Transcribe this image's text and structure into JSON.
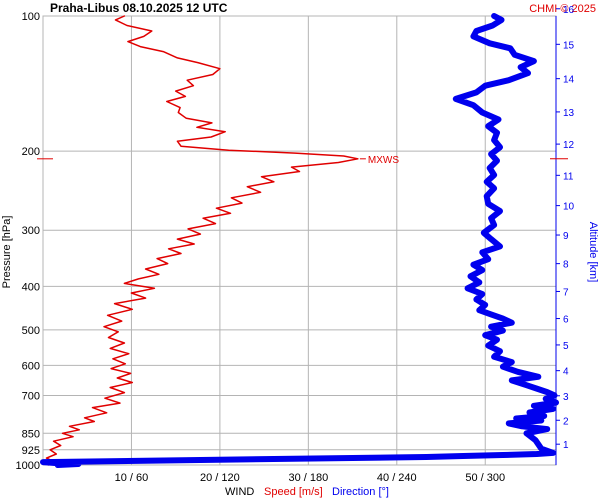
{
  "header": {
    "station": "Praha-Libus",
    "datetime": "08.10.2025 12 UTC",
    "credit": "CHMI © 2025"
  },
  "colors": {
    "speed": "#e00000",
    "direction": "#0000ee",
    "grid": "#b4b4b4",
    "text": "#000000",
    "credit": "#e00000"
  },
  "chart_data": {
    "type": "line",
    "title": "Praha-Libus    08.10.2025 12 UTC",
    "ylabel_left": "Pressure [hPa]",
    "ylabel_right": "Altitude [km]",
    "xlabel": {
      "prefix": "WIND",
      "speed": "Speed [m/s]",
      "direction": "Direction [°]"
    },
    "pressure_ticks": [
      100,
      200,
      300,
      400,
      500,
      600,
      700,
      850,
      925,
      1000
    ],
    "altitude_ticks": [
      1,
      2,
      3,
      4,
      5,
      6,
      7,
      8,
      9,
      10,
      11,
      12,
      13,
      14,
      15,
      16
    ],
    "x_tick_labels": [
      "10 / 60",
      "20 / 120",
      "30 / 180",
      "40 / 240",
      "50 / 300"
    ],
    "speed_xlim": [
      0,
      58
    ],
    "direction_xlim": [
      0,
      348
    ],
    "log_pressure_axis": true,
    "grid": true,
    "max_wind_label": "MXWS",
    "max_wind_pressure": 208,
    "series": [
      {
        "name": "Speed [m/s]",
        "color": "#e00000",
        "points": [
          [
            0.6,
            1000
          ],
          [
            1.1,
            980
          ],
          [
            0.4,
            965
          ],
          [
            1.5,
            945
          ],
          [
            0.8,
            925
          ],
          [
            2.0,
            905
          ],
          [
            1.2,
            885
          ],
          [
            3.4,
            865
          ],
          [
            2.2,
            850
          ],
          [
            4.1,
            835
          ],
          [
            3.0,
            820
          ],
          [
            5.8,
            800
          ],
          [
            4.7,
            785
          ],
          [
            7.2,
            765
          ],
          [
            5.6,
            745
          ],
          [
            8.7,
            728
          ],
          [
            7.0,
            710
          ],
          [
            9.2,
            690
          ],
          [
            7.6,
            672
          ],
          [
            10.1,
            655
          ],
          [
            8.4,
            640
          ],
          [
            9.9,
            625
          ],
          [
            7.7,
            610
          ],
          [
            9.3,
            595
          ],
          [
            7.9,
            580
          ],
          [
            9.7,
            565
          ],
          [
            7.6,
            550
          ],
          [
            9.2,
            535
          ],
          [
            7.4,
            520
          ],
          [
            8.5,
            505
          ],
          [
            6.9,
            492
          ],
          [
            8.9,
            478
          ],
          [
            7.3,
            464
          ],
          [
            10.1,
            450
          ],
          [
            8.1,
            437
          ],
          [
            11.6,
            425
          ],
          [
            10.0,
            414
          ],
          [
            12.6,
            404
          ],
          [
            9.2,
            394
          ],
          [
            10.8,
            385
          ],
          [
            13.1,
            376
          ],
          [
            11.6,
            366
          ],
          [
            14.1,
            356
          ],
          [
            12.9,
            347
          ],
          [
            15.6,
            338
          ],
          [
            14.2,
            330
          ],
          [
            17.1,
            322
          ],
          [
            15.2,
            314
          ],
          [
            17.8,
            306
          ],
          [
            16.4,
            298
          ],
          [
            19.5,
            290
          ],
          [
            18.1,
            282
          ],
          [
            21.2,
            275
          ],
          [
            19.6,
            268
          ],
          [
            22.5,
            261
          ],
          [
            21.3,
            254
          ],
          [
            24.6,
            247
          ],
          [
            23.1,
            240
          ],
          [
            26.1,
            234
          ],
          [
            24.7,
            228
          ],
          [
            29.0,
            222
          ],
          [
            28.1,
            217
          ],
          [
            33.4,
            212
          ],
          [
            35.6,
            208
          ],
          [
            34.0,
            205
          ],
          [
            28.5,
            202
          ],
          [
            21.0,
            199
          ],
          [
            15.6,
            195
          ],
          [
            15.2,
            190
          ],
          [
            19.0,
            186
          ],
          [
            20.6,
            181
          ],
          [
            17.4,
            177
          ],
          [
            19.1,
            173
          ],
          [
            16.2,
            169
          ],
          [
            15.3,
            164
          ],
          [
            15.5,
            160
          ],
          [
            14.0,
            155
          ],
          [
            16.1,
            151
          ],
          [
            15.0,
            147
          ],
          [
            17.0,
            143
          ],
          [
            16.3,
            139
          ],
          [
            19.2,
            135
          ],
          [
            20.0,
            131
          ],
          [
            17.5,
            127
          ],
          [
            15.2,
            124
          ],
          [
            13.6,
            120
          ],
          [
            11.0,
            117
          ],
          [
            9.6,
            114
          ],
          [
            11.4,
            111
          ],
          [
            12.3,
            108
          ],
          [
            9.5,
            105
          ],
          [
            8.2,
            102
          ],
          [
            9.2,
            100
          ]
        ]
      },
      {
        "name": "Direction [°]",
        "color": "#0000ee",
        "points": [
          [
            10,
            1000
          ],
          [
            24,
            995
          ],
          [
            8,
            990
          ],
          [
            0,
            985
          ],
          [
            260,
            960
          ],
          [
            285,
            955
          ],
          [
            312,
            950
          ],
          [
            335,
            945
          ],
          [
            346,
            940
          ],
          [
            338,
            920
          ],
          [
            334,
            880
          ],
          [
            328,
            850
          ],
          [
            342,
            832
          ],
          [
            325,
            820
          ],
          [
            316,
            808
          ],
          [
            338,
            796
          ],
          [
            321,
            788
          ],
          [
            340,
            778
          ],
          [
            330,
            764
          ],
          [
            346,
            750
          ],
          [
            333,
            738
          ],
          [
            348,
            726
          ],
          [
            341,
            712
          ],
          [
            347,
            700
          ],
          [
            342,
            688
          ],
          [
            335,
            676
          ],
          [
            328,
            664
          ],
          [
            318,
            648
          ],
          [
            336,
            636
          ],
          [
            322,
            620
          ],
          [
            312,
            604
          ],
          [
            318,
            590
          ],
          [
            306,
            574
          ],
          [
            310,
            558
          ],
          [
            302,
            542
          ],
          [
            308,
            526
          ],
          [
            300,
            514
          ],
          [
            312,
            502
          ],
          [
            304,
            492
          ],
          [
            318,
            482
          ],
          [
            312,
            472
          ],
          [
            304,
            462
          ],
          [
            296,
            452
          ],
          [
            300,
            440
          ],
          [
            294,
            428
          ],
          [
            298,
            416
          ],
          [
            288,
            404
          ],
          [
            296,
            392
          ],
          [
            290,
            380
          ],
          [
            298,
            368
          ],
          [
            292,
            358
          ],
          [
            302,
            348
          ],
          [
            298,
            336
          ],
          [
            310,
            326
          ],
          [
            304,
            314
          ],
          [
            299,
            304
          ],
          [
            306,
            292
          ],
          [
            304,
            282
          ],
          [
            310,
            272
          ],
          [
            302,
            262
          ],
          [
            301,
            252
          ],
          [
            306,
            242
          ],
          [
            301,
            234
          ],
          [
            306,
            226
          ],
          [
            303,
            218
          ],
          [
            308,
            210
          ],
          [
            304,
            203
          ],
          [
            310,
            196
          ],
          [
            306,
            189
          ],
          [
            308,
            182
          ],
          [
            302,
            176
          ],
          [
            309,
            170
          ],
          [
            298,
            164
          ],
          [
            292,
            158
          ],
          [
            280,
            153
          ],
          [
            294,
            148
          ],
          [
            300,
            143
          ],
          [
            316,
            139
          ],
          [
            329,
            134
          ],
          [
            324,
            130
          ],
          [
            333,
            126
          ],
          [
            320,
            122
          ],
          [
            317,
            118
          ],
          [
            303,
            115
          ],
          [
            292,
            111
          ],
          [
            294,
            108
          ],
          [
            305,
            105
          ],
          [
            311,
            102
          ],
          [
            306,
            100
          ]
        ]
      }
    ]
  }
}
